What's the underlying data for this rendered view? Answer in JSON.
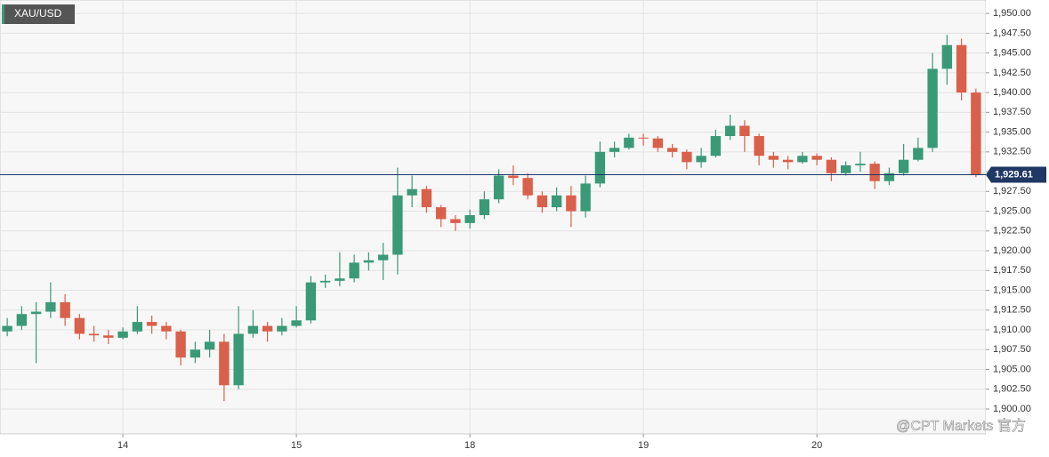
{
  "chart_data": {
    "type": "candlestick",
    "title": "XAU/USD",
    "watermark": "@CPT Markets 官方",
    "up_color": "#3a9a78",
    "down_color": "#d9604a",
    "grid": true,
    "categories": [
      null,
      null,
      null,
      null,
      null,
      null,
      null,
      null,
      "14",
      null,
      null,
      null,
      null,
      null,
      null,
      null,
      null,
      null,
      null,
      null,
      "15",
      null,
      null,
      null,
      null,
      null,
      null,
      null,
      null,
      null,
      null,
      null,
      "18",
      null,
      null,
      null,
      null,
      null,
      null,
      null,
      null,
      null,
      null,
      null,
      "19",
      null,
      null,
      null,
      null,
      null,
      null,
      null,
      null,
      null,
      null,
      null,
      "20",
      null,
      null,
      null,
      null,
      null,
      null,
      null,
      null,
      null,
      null,
      null
    ],
    "open": [
      1909.8,
      1910.5,
      1912,
      1912.3,
      1913.5,
      1911.5,
      1909.5,
      1909.3,
      1909,
      1909.8,
      1911,
      1910.5,
      1909.8,
      1906.5,
      1907.5,
      1908.5,
      1903,
      1909.5,
      1910.5,
      1909.8,
      1910.5,
      1911.2,
      1916,
      1916.2,
      1916.5,
      1918.5,
      1918.8,
      1919.5,
      1927,
      1927.8,
      1925.5,
      1924,
      1923.5,
      1924.5,
      1926.5,
      1929.5,
      1929.2,
      1927,
      1925.5,
      1927,
      1925,
      1928.5,
      1932.5,
      1933,
      1934.3,
      1934.2,
      1933,
      1932.5,
      1931.2,
      1932,
      1934.5,
      1935.8,
      1934.5,
      1932,
      1931.5,
      1931.2,
      1932,
      1931.5,
      1929.8,
      1930.8,
      1931,
      1928.8,
      1929.8,
      1931.5,
      1933,
      1943,
      1946,
      1940
    ],
    "high": [
      1911.5,
      1913,
      1913.5,
      1916,
      1914.5,
      1912,
      1910.5,
      1910,
      1910.3,
      1913,
      1911.8,
      1911,
      1910,
      1908.5,
      1910,
      1909.5,
      1913,
      1912.5,
      1911,
      1911.5,
      1913,
      1916.8,
      1917,
      1919.8,
      1919.5,
      1919.8,
      1921,
      1930.5,
      1929.5,
      1928.2,
      1925.8,
      1924.5,
      1925.2,
      1927.5,
      1930.3,
      1930.8,
      1929.8,
      1927.5,
      1928,
      1928.2,
      1929.5,
      1933.8,
      1933.8,
      1934.8,
      1934.8,
      1934.5,
      1933.5,
      1932.8,
      1933,
      1935.3,
      1937.2,
      1936.5,
      1934.8,
      1932.5,
      1932,
      1932.5,
      1932.3,
      1931.8,
      1931.3,
      1932.5,
      1931.3,
      1930.5,
      1933.5,
      1934.3,
      1945,
      1947.3,
      1946.8,
      1940.5
    ],
    "low": [
      1909.2,
      1910,
      1905.8,
      1911.5,
      1910.5,
      1908.8,
      1908.5,
      1908.2,
      1908.8,
      1909.5,
      1909.5,
      1908.8,
      1905.5,
      1905.8,
      1906.5,
      1901,
      1902.5,
      1909,
      1908.5,
      1909.3,
      1910.3,
      1910.8,
      1915.3,
      1915.5,
      1916,
      1917.5,
      1916.3,
      1917,
      1925.5,
      1924.8,
      1923,
      1922.5,
      1922.8,
      1924,
      1926,
      1928.3,
      1926.5,
      1924.8,
      1925,
      1923,
      1924.2,
      1928,
      1931.8,
      1932.8,
      1933.3,
      1932.5,
      1931.8,
      1930.3,
      1930.5,
      1931.8,
      1934,
      1932.5,
      1930.8,
      1930.5,
      1930.3,
      1931,
      1930.8,
      1928.8,
      1929.5,
      1930,
      1927.8,
      1928.3,
      1929.5,
      1931.3,
      1932.5,
      1941,
      1939,
      1929.3
    ],
    "close": [
      1910.5,
      1912,
      1912.3,
      1913.5,
      1911.5,
      1909.5,
      1909.3,
      1909,
      1909.8,
      1911,
      1910.5,
      1909.8,
      1906.5,
      1907.5,
      1908.5,
      1903,
      1909.5,
      1910.5,
      1909.8,
      1910.5,
      1911.2,
      1916,
      1916.2,
      1916.5,
      1918.5,
      1918.8,
      1919.5,
      1927,
      1927.8,
      1925.5,
      1924,
      1923.5,
      1924.5,
      1926.5,
      1929.5,
      1929.2,
      1927,
      1925.5,
      1927,
      1925,
      1928.5,
      1932.5,
      1933,
      1934.3,
      1934.2,
      1933,
      1932.5,
      1931.2,
      1932,
      1934.5,
      1935.8,
      1934.5,
      1932,
      1931.5,
      1931.2,
      1932,
      1931.5,
      1929.8,
      1930.8,
      1931,
      1928.8,
      1929.8,
      1931.5,
      1933,
      1943,
      1946,
      1940,
      1929.61
    ],
    "price_line": {
      "value": 1929.61,
      "label": "1,929.61",
      "color": "#1f3864"
    },
    "ylim": [
      1896.85,
      1951.7
    ],
    "yticks": [
      {
        "value": 1900,
        "label": "1,900.00"
      },
      {
        "value": 1902.5,
        "label": "1,902.50"
      },
      {
        "value": 1905,
        "label": "1,905.00"
      },
      {
        "value": 1907.5,
        "label": "1,907.50"
      },
      {
        "value": 1910,
        "label": "1,910.00"
      },
      {
        "value": 1912.5,
        "label": "1,912.50"
      },
      {
        "value": 1915,
        "label": "1,915.00"
      },
      {
        "value": 1917.5,
        "label": "1,917.50"
      },
      {
        "value": 1920,
        "label": "1,920.00"
      },
      {
        "value": 1922.5,
        "label": "1,922.50"
      },
      {
        "value": 1925,
        "label": "1,925.00"
      },
      {
        "value": 1927.5,
        "label": "1,927.50"
      },
      {
        "value": 1930,
        "label": "1,930.00"
      },
      {
        "value": 1932.5,
        "label": "1,932.50"
      },
      {
        "value": 1935,
        "label": "1,935.00"
      },
      {
        "value": 1937.5,
        "label": "1,937.50"
      },
      {
        "value": 1940,
        "label": "1,940.00"
      },
      {
        "value": 1942.5,
        "label": "1,942.50"
      },
      {
        "value": 1945,
        "label": "1,945.00"
      },
      {
        "value": 1947.5,
        "label": "1,947.50"
      },
      {
        "value": 1950,
        "label": "1,950.00"
      }
    ]
  }
}
